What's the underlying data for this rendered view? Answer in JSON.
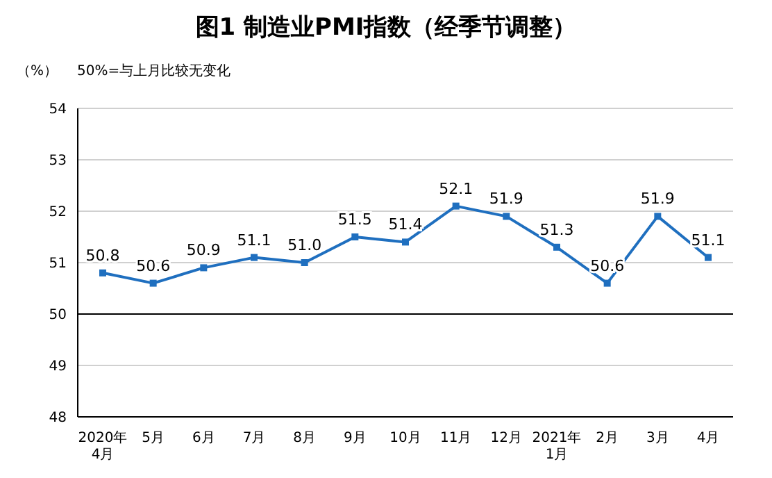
{
  "chart_data": {
    "type": "line",
    "title": "图1  制造业PMI指数（经季节调整）",
    "ylabel": "（%）",
    "annotations": [
      "50%=与上月比较无变化"
    ],
    "categories": [
      "2020年\n4月",
      "5月",
      "6月",
      "7月",
      "8月",
      "9月",
      "10月",
      "11月",
      "12月",
      "2021年\n1月",
      "2月",
      "3月",
      "4月"
    ],
    "series": [
      {
        "color": "#1f6fbf",
        "values": [
          50.8,
          50.6,
          50.9,
          51.1,
          51.0,
          51.5,
          51.4,
          52.1,
          51.9,
          51.3,
          50.6,
          51.9,
          51.1
        ],
        "value_labels": [
          "50.8",
          "50.6",
          "50.9",
          "51.1",
          "51.0",
          "51.5",
          "51.4",
          "52.1",
          "51.9",
          "51.3",
          "50.6",
          "51.9",
          "51.1"
        ]
      }
    ],
    "ylim": [
      48,
      54
    ],
    "yticks": [
      48,
      49,
      50,
      51,
      52,
      53,
      54
    ],
    "grid": "y",
    "marker": "square",
    "line_style": "solid",
    "ref_lines": [
      {
        "axis": "y",
        "value": 50,
        "color": "#000000"
      }
    ]
  }
}
